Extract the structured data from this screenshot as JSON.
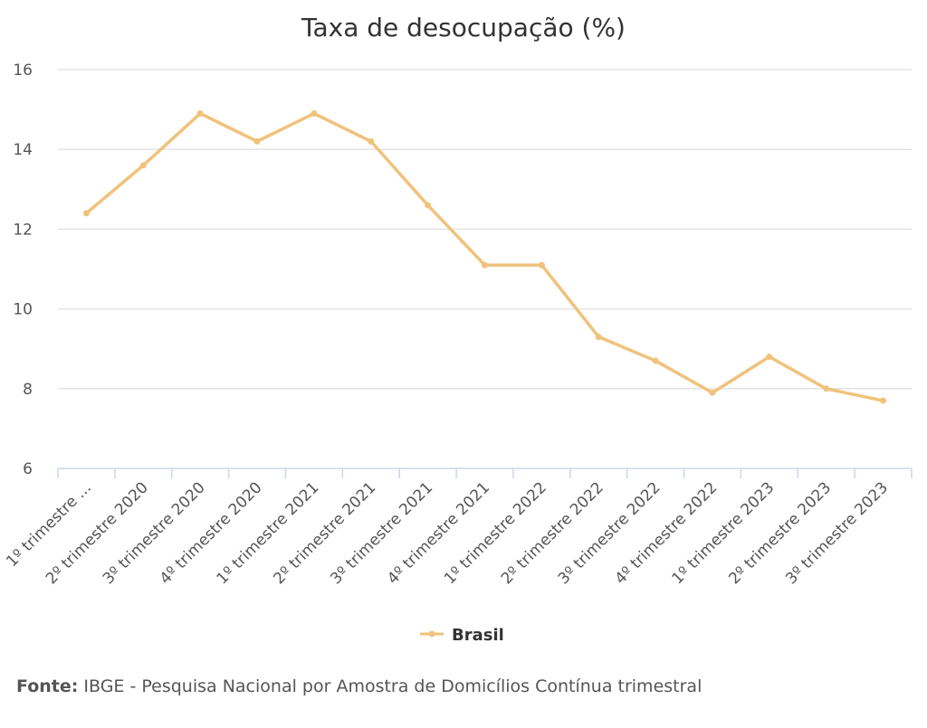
{
  "chart_data": {
    "type": "line",
    "title": "Taxa de desocupação (%)",
    "categories": [
      "1º trimestre ...",
      "2º trimestre 2020",
      "3º trimestre 2020",
      "4º trimestre 2020",
      "1º trimestre 2021",
      "2º trimestre 2021",
      "3º trimestre 2021",
      "4º trimestre 2021",
      "1º trimestre 2022",
      "2º trimestre 2022",
      "3º trimestre 2022",
      "4º trimestre 2022",
      "1º trimestre 2023",
      "2º trimestre 2023",
      "3º trimestre 2023"
    ],
    "series": [
      {
        "name": "Brasil",
        "values": [
          12.4,
          13.6,
          14.9,
          14.2,
          14.9,
          14.2,
          12.6,
          11.1,
          11.1,
          9.3,
          8.7,
          7.9,
          8.8,
          8.0,
          7.7
        ]
      }
    ],
    "ylim": [
      6,
      16
    ],
    "yticks": [
      "6",
      "8",
      "10",
      "12",
      "14",
      "16"
    ],
    "grid": true,
    "legend_position": "bottom-center",
    "color": "#f0c27b"
  },
  "source": {
    "label": "Fonte:",
    "text": " IBGE - Pesquisa Nacional por Amostra de Domicílios Contínua trimestral"
  }
}
